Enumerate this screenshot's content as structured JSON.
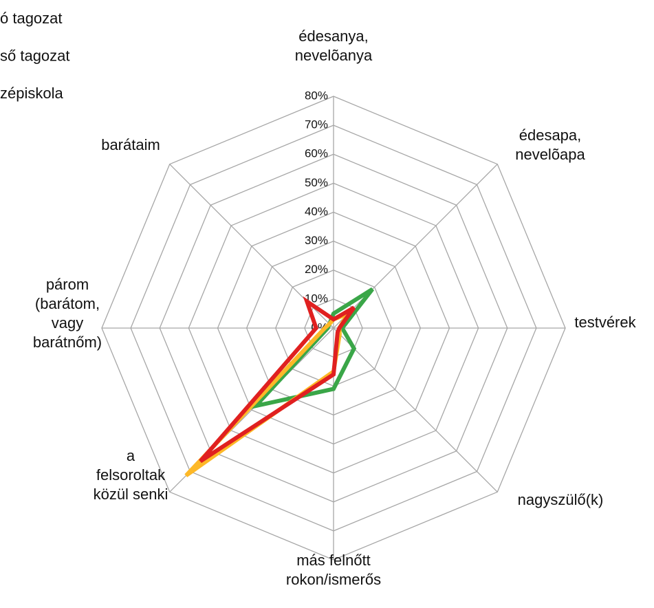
{
  "chart_data": {
    "type": "radar",
    "categories": [
      [
        "édesanya,",
        "nevelõanya"
      ],
      [
        "édesapa,",
        "nevelõapa"
      ],
      [
        "testvérek"
      ],
      [
        "nagyszülő(k)"
      ],
      [
        "más felnőtt",
        "rokon/ismerős"
      ],
      [
        "a",
        "felsoroltak",
        "közül senki"
      ],
      [
        "párom",
        "(barátom,",
        "vagy",
        "barátnőm)"
      ],
      [
        "barátaim"
      ]
    ],
    "series": [
      {
        "name": "ó tagozat",
        "color": "#3aa648",
        "values": [
          5,
          19,
          3,
          10,
          21,
          38,
          2,
          2
        ]
      },
      {
        "name": "ső tagozat",
        "color": "#fdb827",
        "values": [
          3,
          7,
          2,
          3,
          15,
          72,
          3,
          2
        ]
      },
      {
        "name": "zépiskola",
        "color": "#e02020",
        "values": [
          3,
          10,
          2,
          2,
          16,
          65,
          6,
          13
        ]
      }
    ],
    "ylim": [
      0,
      80
    ],
    "yticks": [
      {
        "value": 0,
        "label": "0%"
      },
      {
        "value": 10,
        "label": "10%"
      },
      {
        "value": 20,
        "label": "20%"
      },
      {
        "value": 30,
        "label": "30%"
      },
      {
        "value": 40,
        "label": "40%"
      },
      {
        "value": 50,
        "label": "50%"
      },
      {
        "value": 60,
        "label": "60%"
      },
      {
        "value": 70,
        "label": "70%"
      },
      {
        "value": 80,
        "label": "80%"
      }
    ],
    "grid": true
  }
}
